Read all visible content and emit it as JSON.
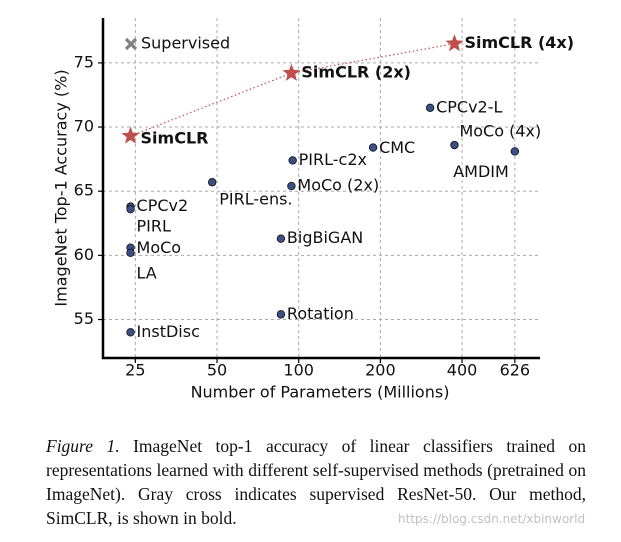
{
  "chart_data": {
    "type": "scatter",
    "xlabel": "Number of Parameters (Millions)",
    "ylabel": "ImageNet Top-1 Accuracy (%)",
    "xscale": "log",
    "xlim": [
      19,
      775
    ],
    "ylim": [
      52,
      78.5
    ],
    "xticks": [
      25,
      50,
      100,
      200,
      400,
      626
    ],
    "yticks": [
      55,
      60,
      65,
      70,
      75
    ],
    "grid": true,
    "legend": {
      "label": "Supervised",
      "marker": "cross",
      "color": "#808080",
      "corner": "upper left"
    },
    "series": [
      {
        "marker": "star",
        "color": "#c0504d",
        "line": "dotted",
        "bold": true,
        "labels": [
          "SimCLR",
          "SimCLR (2x)",
          "SimCLR (4x)"
        ],
        "x": [
          24,
          94,
          375
        ],
        "values": [
          69.3,
          74.2,
          76.5
        ]
      },
      {
        "marker": "circle",
        "color": "#3b4f86",
        "bold": false,
        "labels": [
          "CPCv2",
          "PIRL",
          "MoCo",
          "LA",
          "InstDisc",
          "PIRL-ens.",
          "PIRL-c2x",
          "MoCo (2x)",
          "BigBiGAN",
          "Rotation",
          "CMC",
          "CPCv2-L",
          "MoCo (4x)",
          "AMDIM"
        ],
        "x": [
          24,
          24,
          24,
          24,
          24,
          48,
          95,
          94,
          86,
          86,
          188,
          305,
          375,
          626
        ],
        "values": [
          63.8,
          63.6,
          60.6,
          60.2,
          54.0,
          65.7,
          67.4,
          65.4,
          61.3,
          55.4,
          68.4,
          71.5,
          68.6,
          68.1
        ]
      }
    ]
  },
  "caption": {
    "label": "Figure 1.",
    "text": "ImageNet top-1 accuracy of linear classifiers trained on representations learned with different self-supervised methods (pretrained on ImageNet). Gray cross indicates supervised ResNet-50. Our method, SimCLR, is shown in bold."
  },
  "watermark": "https://blog.csdn.net/xbinworld"
}
